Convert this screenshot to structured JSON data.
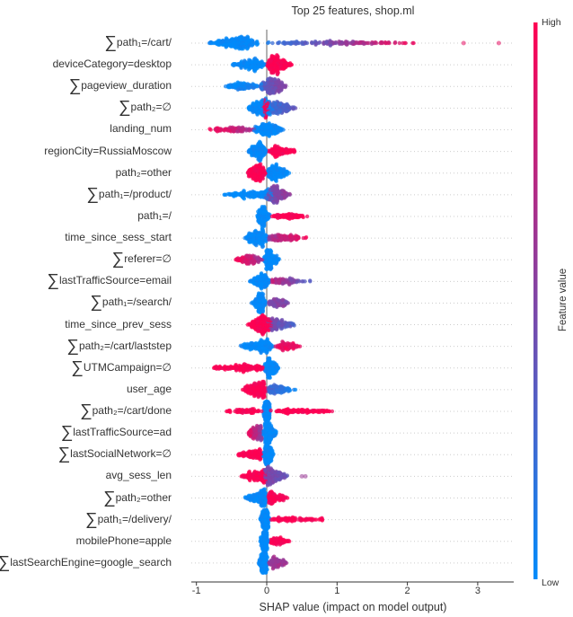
{
  "chart_data": {
    "type": "scatter",
    "subtype": "shap-beeswarm",
    "title": "Top 25 features, shop.ml",
    "xlabel": "SHAP value (impact on model output)",
    "xlim": [
      -1.07,
      3.5
    ],
    "xticks": [
      "-1",
      "0",
      "1",
      "2",
      "3"
    ],
    "xtick_values": [
      -1,
      0,
      1,
      2,
      3
    ],
    "sigma_symbol": "∑",
    "colorbar": {
      "label": "Feature value",
      "high": "High",
      "low": "Low",
      "high_color": "#ff0052",
      "low_color": "#008bfb"
    },
    "features": [
      {
        "sum": true,
        "label": "path₁=/cart/",
        "segments": [
          [
            -0.82,
            -0.1,
            -0.42,
            1.0,
            0,
            0
          ],
          [
            -0.1,
            2.2,
            0.9,
            0.55,
            0.1,
            1
          ]
        ],
        "outliers": [
          [
            2.8,
            0.9
          ],
          [
            3.3,
            0.9
          ]
        ]
      },
      {
        "sum": false,
        "label": "deviceCategory=desktop",
        "segments": [
          [
            -0.5,
            0,
            -0.15,
            0.6,
            0,
            0
          ],
          [
            0,
            0.37,
            0.08,
            0.8,
            1,
            1
          ]
        ]
      },
      {
        "sum": true,
        "label": "pageview_duration",
        "segments": [
          [
            -0.6,
            -0.05,
            -0.38,
            0.45,
            0,
            0.1
          ],
          [
            -0.1,
            0.3,
            0.05,
            0.8,
            0.3,
            0.6
          ]
        ]
      },
      {
        "sum": true,
        "label": "path₂=∅",
        "segments": [
          [
            -0.28,
            0.1,
            -0.12,
            0.6,
            0,
            0
          ],
          [
            -0.08,
            0.06,
            -0.03,
            0.25,
            1,
            1
          ],
          [
            0,
            0.48,
            0.1,
            0.6,
            0.2,
            0.4
          ]
        ]
      },
      {
        "sum": false,
        "label": "landing_num",
        "segments": [
          [
            -0.85,
            -0.15,
            -0.4,
            0.35,
            1,
            0.6
          ],
          [
            -0.2,
            0.25,
            0.03,
            0.7,
            0,
            0
          ]
        ]
      },
      {
        "sum": false,
        "label": "regionCity=RussiaMoscow",
        "segments": [
          [
            -0.27,
            0,
            -0.08,
            0.6,
            0,
            0
          ],
          [
            0,
            0.47,
            0.1,
            0.45,
            1,
            1
          ]
        ]
      },
      {
        "sum": false,
        "label": "path₂=other",
        "segments": [
          [
            -0.3,
            0,
            -0.1,
            0.65,
            1,
            1
          ],
          [
            0,
            0.33,
            0.08,
            0.65,
            0,
            0
          ]
        ]
      },
      {
        "sum": true,
        "label": "path₁=/product/",
        "segments": [
          [
            -0.65,
            0.1,
            -0.03,
            0.6,
            0,
            0
          ],
          [
            -0.05,
            0.35,
            0.1,
            0.7,
            0.4,
            0.6
          ]
        ]
      },
      {
        "sum": false,
        "label": "path₁=/",
        "segments": [
          [
            -0.15,
            0.05,
            -0.06,
            0.55,
            0,
            0
          ],
          [
            0.05,
            0.62,
            0.3,
            0.3,
            1,
            1
          ]
        ]
      },
      {
        "sum": false,
        "label": "time_since_sess_start",
        "segments": [
          [
            -0.32,
            0.05,
            -0.1,
            0.7,
            0,
            0
          ],
          [
            0,
            0.6,
            0.15,
            0.45,
            0.6,
            1
          ]
        ]
      },
      {
        "sum": true,
        "label": "referer=∅",
        "segments": [
          [
            -0.45,
            -0.05,
            -0.2,
            0.45,
            1,
            0.6
          ],
          [
            -0.05,
            0.2,
            0.02,
            0.6,
            0,
            0
          ]
        ]
      },
      {
        "sum": true,
        "label": "lastTrafficSource=email",
        "segments": [
          [
            -0.27,
            0.05,
            -0.04,
            0.55,
            0,
            0
          ],
          [
            0,
            0.62,
            0.2,
            0.35,
            0.8,
            0.3
          ]
        ]
      },
      {
        "sum": true,
        "label": "path₁=/search/",
        "segments": [
          [
            -0.22,
            0,
            -0.06,
            0.55,
            0,
            0
          ],
          [
            0,
            0.33,
            0.1,
            0.35,
            0.5,
            0.5
          ]
        ]
      },
      {
        "sum": false,
        "label": "time_since_prev_sess",
        "segments": [
          [
            -0.28,
            0.1,
            -0.05,
            0.85,
            1,
            1
          ],
          [
            0,
            0.42,
            0.1,
            0.5,
            0.5,
            0.3
          ]
        ]
      },
      {
        "sum": true,
        "label": "path₂=/cart/laststep",
        "segments": [
          [
            -0.38,
            0.1,
            -0.02,
            0.7,
            0,
            0
          ],
          [
            0.1,
            0.48,
            0.25,
            0.3,
            0.9,
            0.9
          ]
        ]
      },
      {
        "sum": true,
        "label": "UTMCampaign=∅",
        "segments": [
          [
            -0.85,
            -0.05,
            -0.1,
            0.55,
            1,
            1
          ],
          [
            -0.05,
            0.18,
            0.03,
            0.6,
            0,
            0
          ]
        ]
      },
      {
        "sum": false,
        "label": "user_age",
        "segments": [
          [
            -0.35,
            0,
            -0.05,
            0.75,
            1,
            1
          ],
          [
            0,
            0.45,
            0.05,
            0.45,
            0.3,
            0
          ]
        ]
      },
      {
        "sum": true,
        "label": "path₂=/cart/done",
        "segments": [
          [
            -0.65,
            -0.05,
            -0.2,
            0.25,
            1,
            1
          ],
          [
            -0.05,
            0.05,
            0,
            0.6,
            0,
            0
          ],
          [
            0.05,
            1.15,
            0.3,
            0.4,
            1,
            1
          ]
        ]
      },
      {
        "sum": true,
        "label": "lastTrafficSource=ad",
        "segments": [
          [
            -0.3,
            -0.05,
            -0.08,
            0.5,
            1,
            0.5
          ],
          [
            -0.05,
            0.15,
            0.0,
            0.7,
            0,
            0
          ]
        ]
      },
      {
        "sum": true,
        "label": "lastSocialNetwork=∅",
        "segments": [
          [
            -0.45,
            -0.05,
            -0.1,
            0.45,
            1,
            1
          ],
          [
            -0.05,
            0.1,
            0.0,
            0.6,
            0,
            0
          ]
        ]
      },
      {
        "sum": false,
        "label": "avg_sess_len",
        "segments": [
          [
            -0.38,
            0,
            -0.05,
            0.5,
            1,
            1
          ],
          [
            -0.05,
            0.3,
            0.02,
            0.75,
            0.5,
            0.4
          ]
        ],
        "outliers": [
          [
            0.5,
            0.6
          ],
          [
            0.55,
            0.6
          ]
        ]
      },
      {
        "sum": true,
        "label": "path₂=other",
        "segments": [
          [
            -0.33,
            0,
            -0.03,
            0.6,
            0,
            0
          ],
          [
            0,
            0.3,
            0.05,
            0.4,
            1,
            1
          ]
        ]
      },
      {
        "sum": true,
        "label": "path₁=/delivery/",
        "segments": [
          [
            -0.1,
            0.05,
            -0.01,
            0.55,
            0,
            0
          ],
          [
            0.05,
            0.9,
            0.2,
            0.35,
            1,
            1
          ]
        ]
      },
      {
        "sum": false,
        "label": "mobilePhone=apple",
        "segments": [
          [
            -0.1,
            0.02,
            -0.02,
            0.55,
            0,
            0
          ],
          [
            0.02,
            0.33,
            0.1,
            0.3,
            1,
            1
          ]
        ]
      },
      {
        "sum": true,
        "label": "lastSearchEngine=google_search",
        "segments": [
          [
            -0.12,
            0.02,
            -0.02,
            0.6,
            0,
            0
          ],
          [
            0.02,
            0.3,
            0.1,
            0.35,
            0.6,
            0.6
          ]
        ]
      }
    ]
  }
}
